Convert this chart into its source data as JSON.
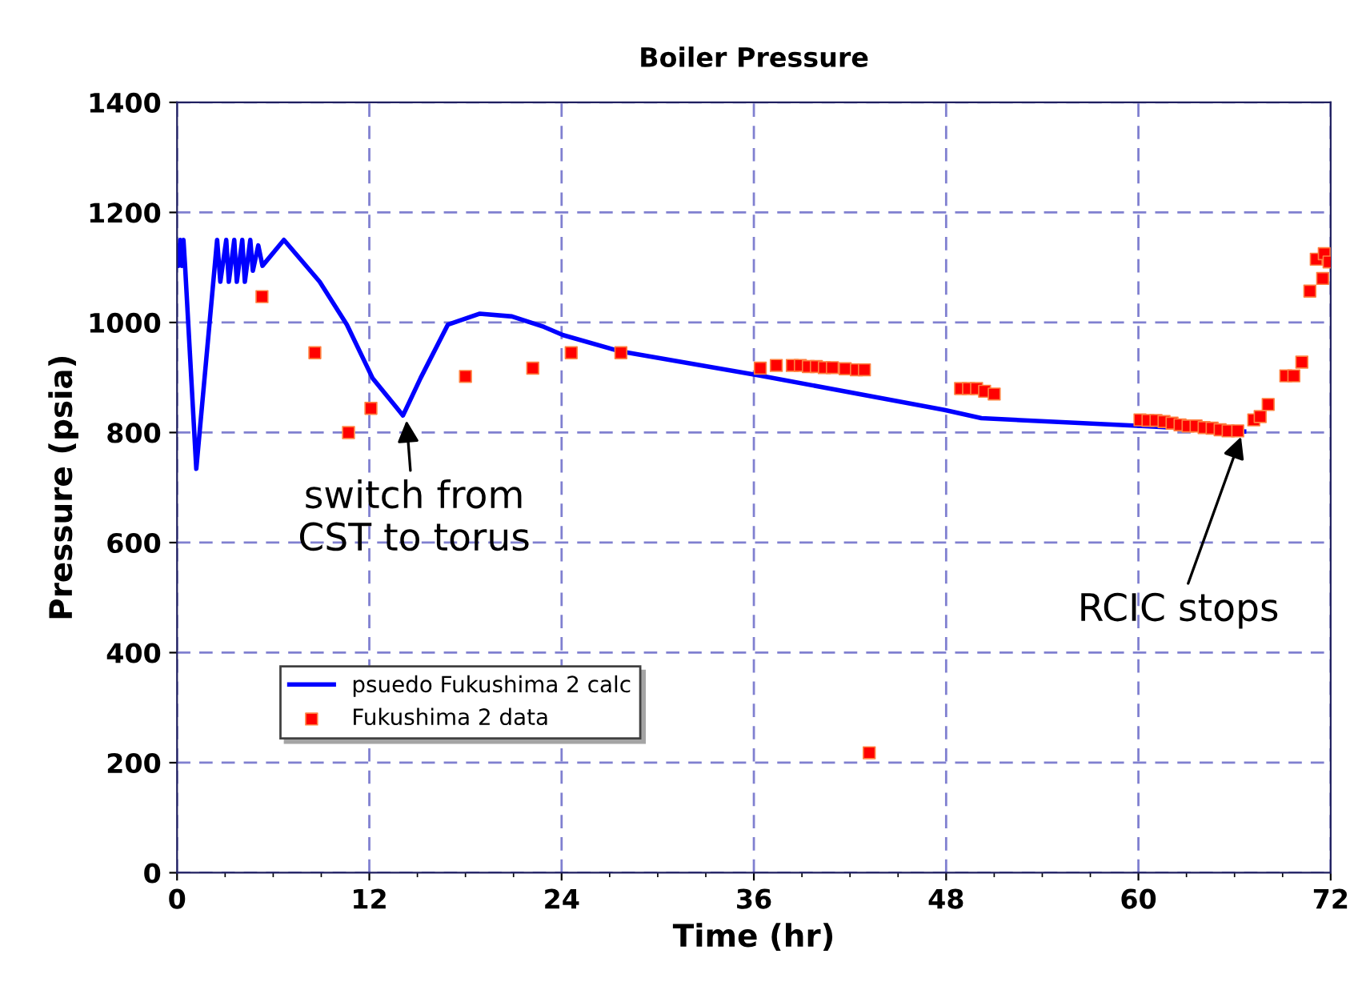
{
  "chart_data": {
    "type": "line",
    "title": "Boiler Pressure",
    "xlabel": "Time (hr)",
    "ylabel": "Pressure (psia)",
    "xlim": [
      0,
      72
    ],
    "xticks": [
      0,
      12,
      24,
      36,
      48,
      60,
      72
    ],
    "ylim": [
      0,
      1400
    ],
    "yticks": [
      0,
      200,
      400,
      600,
      800,
      1000,
      1200,
      1400
    ],
    "grid": true,
    "legend": "bottom left",
    "series": [
      {
        "name": "psuedo Fukushima 2 calc",
        "color": "#0000ff",
        "marker": "none",
        "x": [
          0.0,
          0.1,
          0.2,
          0.3,
          0.4,
          0.5,
          1.2,
          2.5,
          2.7,
          3.07,
          3.23,
          3.57,
          3.73,
          4.07,
          4.23,
          4.57,
          4.73,
          5.07,
          5.33,
          6.67,
          8.9,
          10.6,
          12.2,
          14.1,
          15.2,
          16.9,
          18.9,
          20.9,
          22.9,
          24.1,
          27.6,
          36.3,
          47.9,
          50.2,
          60.2,
          66.6
        ],
        "values": [
          1140,
          1103,
          1150,
          1103,
          1150,
          1103,
          734,
          1150,
          1074,
          1150,
          1074,
          1150,
          1074,
          1150,
          1074,
          1150,
          1094,
          1140,
          1103,
          1150,
          1074,
          996,
          899,
          831,
          899,
          996,
          1016,
          1011,
          992,
          977,
          948,
          904,
          841,
          826,
          812,
          802
        ]
      },
      {
        "name": "Fukushima 2 data",
        "type": "scatter",
        "color": "#ff0000",
        "marker": "square",
        "x": [
          5.3,
          8.6,
          10.7,
          12.1,
          18.0,
          22.2,
          24.6,
          27.7,
          36.4,
          37.4,
          38.4,
          38.9,
          39.4,
          39.9,
          40.4,
          40.9,
          41.7,
          42.4,
          42.9,
          43.2,
          48.9,
          49.4,
          49.9,
          50.4,
          51.0,
          60.1,
          60.6,
          61.1,
          61.6,
          62.1,
          62.6,
          63.1,
          63.6,
          64.1,
          64.6,
          65.1,
          65.6,
          66.2,
          67.2,
          67.6,
          68.1,
          69.2,
          69.7,
          70.2,
          70.7,
          71.1,
          71.5,
          71.6,
          71.8,
          71.9
        ],
        "values": [
          1047,
          945,
          800,
          844,
          902,
          917,
          945,
          945,
          917,
          922,
          922,
          922,
          920,
          920,
          918,
          918,
          916,
          914,
          914,
          218,
          880,
          880,
          880,
          875,
          870,
          823,
          822,
          822,
          820,
          817,
          814,
          812,
          812,
          809,
          808,
          805,
          803,
          803,
          823,
          829,
          851,
          903,
          903,
          928,
          1057,
          1115,
          1080,
          1125,
          null,
          1110
        ]
      }
    ],
    "annotations": [
      {
        "text": "switch from\nCST to torus",
        "x": 14.3,
        "y": 830
      },
      {
        "text": "RCIC stops",
        "x": 66.5,
        "y": 800
      }
    ]
  }
}
